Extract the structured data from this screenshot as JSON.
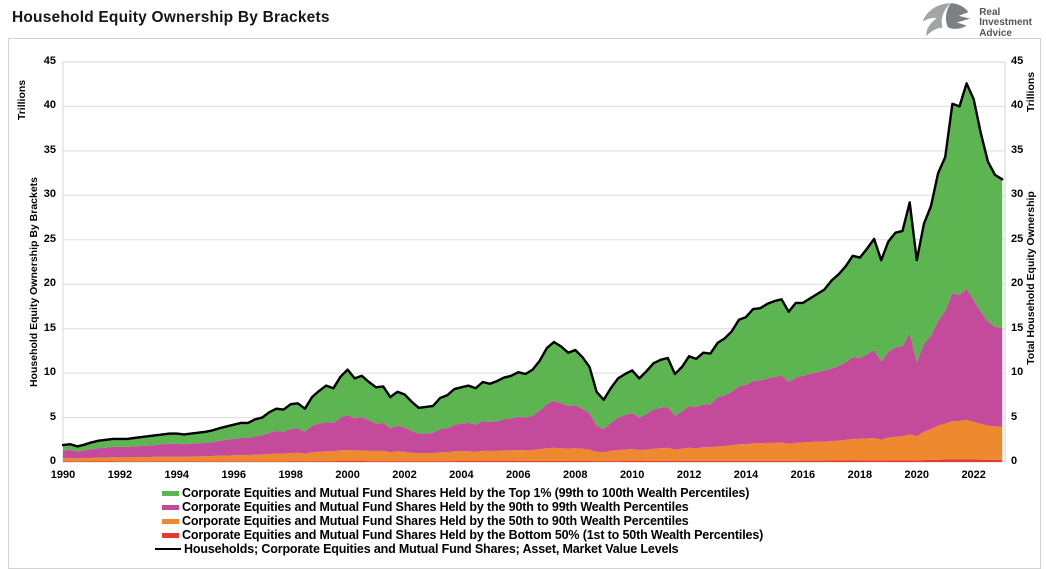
{
  "header": {
    "title": "Household Equity Ownership By Brackets"
  },
  "logo": {
    "icon": "eagle-icon",
    "line1": "Real",
    "line2": "Investment",
    "line3": "Advice"
  },
  "axes": {
    "left": {
      "unit_label": "Trillions",
      "axis_label": "Household Equity Ownership By Brackets"
    },
    "right": {
      "unit_label": "Trillions",
      "axis_label": "Total Household Equity Ownership"
    },
    "y_ticks": [
      0,
      5,
      10,
      15,
      20,
      25,
      30,
      35,
      40,
      45
    ],
    "x_ticks": [
      1990,
      1992,
      1994,
      1996,
      1998,
      2000,
      2002,
      2004,
      2006,
      2008,
      2010,
      2012,
      2014,
      2016,
      2018,
      2020,
      2022
    ]
  },
  "chart_data": {
    "type": "area",
    "stacked": true,
    "title": "Household Equity Ownership By Brackets",
    "xlabel": "",
    "ylabel": "Trillions",
    "ylim": [
      0,
      45
    ],
    "x_range": [
      1990,
      2023.1
    ],
    "x_start": 1990.0,
    "x_step": 0.25,
    "n_points": 133,
    "grid": "horizontal",
    "legend_position": "bottom",
    "legend_order": [
      3,
      2,
      1,
      0,
      4
    ],
    "series": [
      {
        "id": "bottom50",
        "type": "area",
        "color": "#e23b2e",
        "name": "Corporate Equities and Mutual Fund Shares Held by the Bottom 50% (1st to 50th Wealth Percentiles)",
        "values": [
          0.06,
          0.06,
          0.05,
          0.06,
          0.06,
          0.06,
          0.06,
          0.06,
          0.07,
          0.07,
          0.07,
          0.07,
          0.07,
          0.07,
          0.07,
          0.07,
          0.08,
          0.08,
          0.08,
          0.08,
          0.08,
          0.08,
          0.08,
          0.08,
          0.08,
          0.08,
          0.08,
          0.08,
          0.09,
          0.09,
          0.09,
          0.09,
          0.1,
          0.1,
          0.09,
          0.1,
          0.1,
          0.1,
          0.1,
          0.11,
          0.11,
          0.11,
          0.11,
          0.1,
          0.1,
          0.1,
          0.1,
          0.1,
          0.1,
          0.1,
          0.1,
          0.1,
          0.1,
          0.1,
          0.1,
          0.1,
          0.11,
          0.11,
          0.11,
          0.11,
          0.11,
          0.11,
          0.11,
          0.11,
          0.12,
          0.12,
          0.12,
          0.12,
          0.12,
          0.12,
          0.12,
          0.12,
          0.11,
          0.11,
          0.11,
          0.1,
          0.1,
          0.1,
          0.1,
          0.11,
          0.12,
          0.11,
          0.12,
          0.12,
          0.12,
          0.12,
          0.11,
          0.12,
          0.13,
          0.13,
          0.13,
          0.13,
          0.14,
          0.14,
          0.14,
          0.15,
          0.15,
          0.15,
          0.15,
          0.15,
          0.15,
          0.15,
          0.15,
          0.15,
          0.16,
          0.16,
          0.16,
          0.16,
          0.17,
          0.17,
          0.17,
          0.17,
          0.18,
          0.18,
          0.18,
          0.18,
          0.19,
          0.19,
          0.19,
          0.2,
          0.18,
          0.21,
          0.24,
          0.26,
          0.28,
          0.3,
          0.3,
          0.3,
          0.28,
          0.27,
          0.26,
          0.25,
          0.24
        ]
      },
      {
        "id": "p50-90",
        "type": "area",
        "color": "#ee8930",
        "name": "Corporate Equities and Mutual Fund Shares Held by the 50th to 90th Wealth Percentiles",
        "values": [
          0.38,
          0.4,
          0.35,
          0.38,
          0.4,
          0.43,
          0.45,
          0.47,
          0.45,
          0.45,
          0.47,
          0.48,
          0.49,
          0.51,
          0.53,
          0.54,
          0.54,
          0.52,
          0.54,
          0.55,
          0.57,
          0.59,
          0.62,
          0.64,
          0.67,
          0.7,
          0.7,
          0.74,
          0.76,
          0.81,
          0.86,
          0.86,
          0.9,
          0.95,
          0.86,
          1.0,
          1.05,
          1.1,
          1.1,
          1.19,
          1.24,
          1.19,
          1.19,
          1.15,
          1.15,
          1.15,
          1.0,
          1.1,
          1.05,
          0.95,
          0.9,
          0.9,
          0.9,
          1.0,
          1.0,
          1.1,
          1.09,
          1.09,
          1.04,
          1.14,
          1.14,
          1.14,
          1.19,
          1.19,
          1.23,
          1.18,
          1.23,
          1.33,
          1.43,
          1.48,
          1.43,
          1.38,
          1.44,
          1.39,
          1.29,
          1.05,
          1.0,
          1.15,
          1.25,
          1.29,
          1.33,
          1.24,
          1.28,
          1.38,
          1.43,
          1.48,
          1.29,
          1.38,
          1.47,
          1.42,
          1.52,
          1.52,
          1.61,
          1.66,
          1.76,
          1.85,
          1.85,
          1.95,
          1.95,
          2.0,
          2.0,
          2.05,
          1.9,
          2.0,
          2.04,
          2.09,
          2.14,
          2.14,
          2.18,
          2.23,
          2.33,
          2.43,
          2.42,
          2.47,
          2.52,
          2.32,
          2.56,
          2.66,
          2.71,
          2.9,
          2.72,
          3.19,
          3.46,
          3.84,
          4.02,
          4.3,
          4.3,
          4.45,
          4.22,
          4.03,
          3.84,
          3.75,
          3.71
        ]
      },
      {
        "id": "p90-99",
        "type": "area",
        "color": "#c44a9c",
        "name": "Corporate Equities and Mutual Fund Shares Held by the 90th to 99th Wealth Percentiles",
        "values": [
          0.86,
          0.9,
          0.78,
          0.86,
          0.99,
          1.06,
          1.09,
          1.17,
          1.18,
          1.18,
          1.21,
          1.25,
          1.29,
          1.32,
          1.4,
          1.44,
          1.43,
          1.4,
          1.43,
          1.47,
          1.5,
          1.55,
          1.7,
          1.78,
          1.85,
          1.92,
          1.92,
          2.08,
          2.15,
          2.4,
          2.55,
          2.45,
          2.7,
          2.75,
          2.45,
          3.0,
          3.15,
          3.3,
          3.2,
          3.7,
          3.95,
          3.6,
          3.8,
          3.45,
          3.05,
          3.15,
          2.7,
          2.9,
          2.75,
          2.45,
          2.2,
          2.2,
          2.3,
          2.6,
          2.7,
          3.0,
          3.1,
          3.2,
          3.05,
          3.35,
          3.25,
          3.35,
          3.5,
          3.6,
          3.75,
          3.7,
          3.85,
          4.35,
          4.95,
          5.3,
          5.05,
          4.8,
          4.85,
          4.5,
          4.1,
          2.95,
          2.6,
          3.15,
          3.65,
          3.9,
          4.05,
          3.65,
          4.0,
          4.4,
          4.55,
          4.6,
          3.8,
          4.2,
          4.7,
          4.65,
          4.85,
          4.85,
          5.55,
          5.7,
          6.0,
          6.5,
          6.7,
          7.0,
          7.1,
          7.25,
          7.45,
          7.5,
          6.95,
          7.35,
          7.5,
          7.65,
          7.8,
          8.0,
          8.15,
          8.4,
          8.7,
          9.2,
          9.1,
          9.45,
          9.9,
          8.8,
          9.65,
          10.05,
          10.1,
          11.4,
          8.3,
          9.9,
          10.5,
          11.8,
          12.7,
          14.4,
          14.2,
          14.75,
          13.7,
          12.6,
          11.7,
          11.2,
          11.15
        ]
      },
      {
        "id": "top1",
        "type": "area",
        "color": "#5cb551",
        "name": "Corporate Equities and Mutual Fund Shares Held by the Top 1% (99th to 100th Wealth Percentiles)",
        "values": [
          0.6,
          0.64,
          0.57,
          0.65,
          0.75,
          0.85,
          0.9,
          0.9,
          0.9,
          0.9,
          0.95,
          1.0,
          1.05,
          1.1,
          1.1,
          1.15,
          1.15,
          1.1,
          1.15,
          1.2,
          1.25,
          1.33,
          1.4,
          1.5,
          1.6,
          1.7,
          1.7,
          1.9,
          2.0,
          2.3,
          2.5,
          2.5,
          2.8,
          2.8,
          2.6,
          3.2,
          3.7,
          4.1,
          3.9,
          4.6,
          5.1,
          4.5,
          4.6,
          4.3,
          4.1,
          4.1,
          3.5,
          3.8,
          3.7,
          3.3,
          2.9,
          3.0,
          3.0,
          3.5,
          3.7,
          4.0,
          4.1,
          4.2,
          4.1,
          4.4,
          4.3,
          4.5,
          4.7,
          4.8,
          5.0,
          4.9,
          5.2,
          5.6,
          6.3,
          6.6,
          6.4,
          6.0,
          6.2,
          5.8,
          5.2,
          3.8,
          3.3,
          3.9,
          4.4,
          4.6,
          4.8,
          4.4,
          4.8,
          5.2,
          5.4,
          5.5,
          4.7,
          5.0,
          5.6,
          5.4,
          5.8,
          5.7,
          6.1,
          6.4,
          6.8,
          7.5,
          7.6,
          8.1,
          8.1,
          8.4,
          8.5,
          8.6,
          7.9,
          8.4,
          8.2,
          8.5,
          8.8,
          9.1,
          9.9,
          10.3,
          10.8,
          11.4,
          11.3,
          11.9,
          12.5,
          11.4,
          12.4,
          12.9,
          13.0,
          14.7,
          11.5,
          13.5,
          14.6,
          16.6,
          17.3,
          21.3,
          21.2,
          23.1,
          22.6,
          20.1,
          18.0,
          17.1,
          16.7
        ]
      },
      {
        "id": "total",
        "type": "line",
        "color": "#000000",
        "name": "Households; Corporate Equities and Mutual Fund Shares; Asset, Market Value Levels",
        "values": [
          1.9,
          2.0,
          1.75,
          1.95,
          2.2,
          2.4,
          2.5,
          2.6,
          2.6,
          2.6,
          2.7,
          2.8,
          2.9,
          3.0,
          3.1,
          3.2,
          3.2,
          3.1,
          3.2,
          3.3,
          3.4,
          3.55,
          3.8,
          4.0,
          4.2,
          4.4,
          4.4,
          4.8,
          5.0,
          5.6,
          6.0,
          5.9,
          6.5,
          6.6,
          6.0,
          7.3,
          8.0,
          8.6,
          8.3,
          9.6,
          10.4,
          9.4,
          9.7,
          9.0,
          8.4,
          8.5,
          7.3,
          7.9,
          7.6,
          6.8,
          6.1,
          6.2,
          6.3,
          7.2,
          7.5,
          8.2,
          8.4,
          8.6,
          8.3,
          9.0,
          8.8,
          9.1,
          9.5,
          9.7,
          10.1,
          9.9,
          10.4,
          11.4,
          12.8,
          13.5,
          13.0,
          12.3,
          12.6,
          11.8,
          10.7,
          7.9,
          7.0,
          8.3,
          9.4,
          9.9,
          10.3,
          9.4,
          10.2,
          11.1,
          11.5,
          11.7,
          9.9,
          10.7,
          11.9,
          11.6,
          12.3,
          12.2,
          13.4,
          13.9,
          14.7,
          16.0,
          16.3,
          17.2,
          17.3,
          17.8,
          18.1,
          18.3,
          16.9,
          17.9,
          17.9,
          18.4,
          18.9,
          19.4,
          20.4,
          21.1,
          22.0,
          23.2,
          23.0,
          24.0,
          25.1,
          22.7,
          24.8,
          25.8,
          26.0,
          29.2,
          22.7,
          26.8,
          28.8,
          32.5,
          34.3,
          40.3,
          40.0,
          42.6,
          40.8,
          37.0,
          33.8,
          32.3,
          31.8
        ]
      }
    ]
  },
  "colors": {
    "grid": "#dcdcdc",
    "plot_border": "#d4d4d4",
    "frame": "#d2d2d2"
  }
}
